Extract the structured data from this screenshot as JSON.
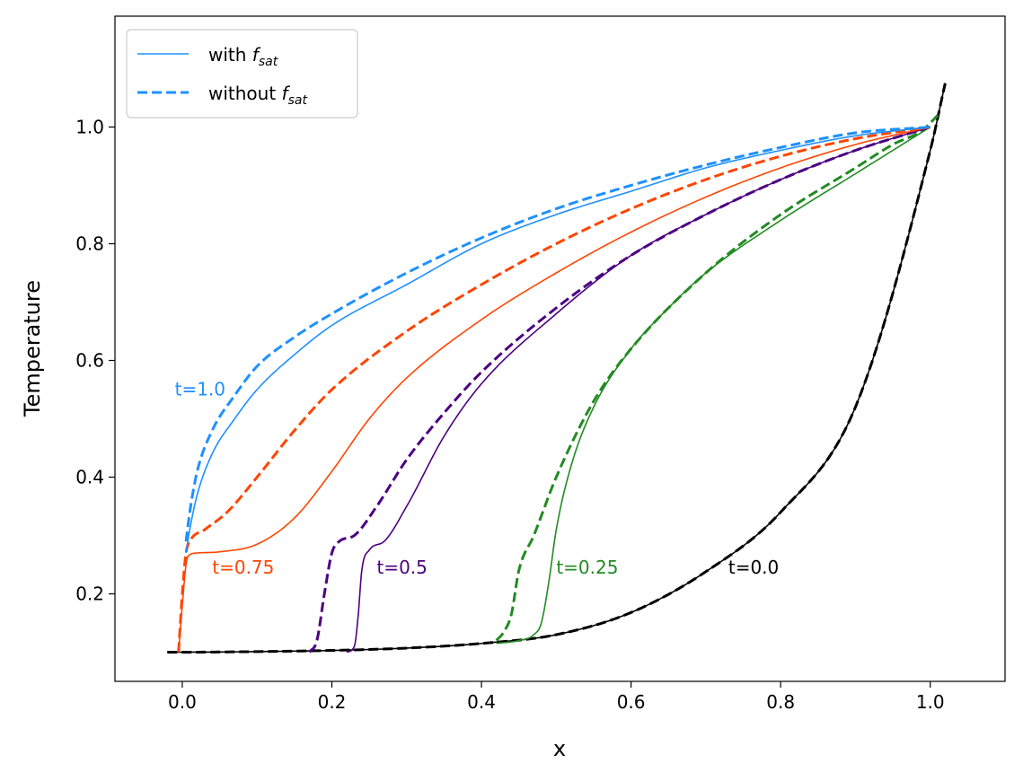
{
  "chart_data": {
    "type": "line",
    "xlabel": "x",
    "ylabel": "Temperature",
    "xlim": [
      -0.09,
      1.1
    ],
    "ylim": [
      0.05,
      1.19
    ],
    "xticks": [
      0.0,
      0.2,
      0.4,
      0.6,
      0.8,
      1.0
    ],
    "xtick_labels": [
      "0.0",
      "0.2",
      "0.4",
      "0.6",
      "0.8",
      "1.0"
    ],
    "yticks": [
      0.2,
      0.4,
      0.6,
      0.8,
      1.0
    ],
    "ytick_labels": [
      "0.2",
      "0.4",
      "0.6",
      "0.8",
      "1.0"
    ],
    "grid": false,
    "legend": {
      "placement": "top-left",
      "entries": [
        {
          "name_main": "with ",
          "name_italic": "f",
          "name_sub": "sat",
          "style": "solid",
          "color": "#1e90ff"
        },
        {
          "name_main": "without ",
          "name_italic": "f",
          "name_sub": "sat",
          "style": "dashed",
          "color": "#1e90ff"
        }
      ]
    },
    "annotations": [
      {
        "text": "t=1.0",
        "x": -0.01,
        "y": 0.54,
        "color": "#1e90ff"
      },
      {
        "text": "t=0.75",
        "x": 0.04,
        "y": 0.235,
        "color": "#ff4500"
      },
      {
        "text": "t=0.5",
        "x": 0.26,
        "y": 0.235,
        "color": "#4b0082"
      },
      {
        "text": "t=0.25",
        "x": 0.5,
        "y": 0.235,
        "color": "#228b22"
      },
      {
        "text": "t=0.0",
        "x": 0.73,
        "y": 0.235,
        "color": "#000000"
      }
    ],
    "series": [
      {
        "time": "t=0.0",
        "style": "solid",
        "color": "#000000",
        "x": [
          -0.02,
          0.0,
          0.1,
          0.2,
          0.3,
          0.4,
          0.5,
          0.6,
          0.7,
          0.8,
          0.9,
          1.0,
          1.02
        ],
        "y": [
          0.1,
          0.1,
          0.101,
          0.103,
          0.107,
          0.115,
          0.13,
          0.168,
          0.238,
          0.34,
          0.52,
          0.96,
          1.075
        ]
      },
      {
        "time": "t=0.0",
        "style": "dashed",
        "color": "#000000",
        "x": [
          -0.02,
          0.0,
          0.1,
          0.2,
          0.3,
          0.4,
          0.5,
          0.6,
          0.7,
          0.8,
          0.9,
          1.0,
          1.02
        ],
        "y": [
          0.1,
          0.1,
          0.101,
          0.103,
          0.107,
          0.115,
          0.13,
          0.168,
          0.238,
          0.34,
          0.52,
          0.96,
          1.075
        ]
      },
      {
        "time": "t=0.25",
        "style": "solid",
        "color": "#228b22",
        "x": [
          0.42,
          0.45,
          0.47,
          0.48,
          0.49,
          0.5,
          0.52,
          0.55,
          0.6,
          0.65,
          0.7,
          0.8,
          0.9,
          0.95,
          1.0
        ],
        "y": [
          0.115,
          0.12,
          0.13,
          0.15,
          0.22,
          0.31,
          0.42,
          0.52,
          0.62,
          0.69,
          0.75,
          0.84,
          0.92,
          0.96,
          1.0
        ]
      },
      {
        "time": "t=0.25",
        "style": "dashed",
        "color": "#228b22",
        "x": [
          0.42,
          0.43,
          0.44,
          0.45,
          0.47,
          0.5,
          0.55,
          0.6,
          0.7,
          0.8,
          0.9,
          0.95,
          0.99,
          1.01
        ],
        "y": [
          0.12,
          0.135,
          0.165,
          0.24,
          0.3,
          0.4,
          0.53,
          0.62,
          0.75,
          0.85,
          0.93,
          0.97,
          0.995,
          1.02
        ]
      },
      {
        "time": "t=0.5",
        "style": "solid",
        "color": "#4b0082",
        "x": [
          0.22,
          0.23,
          0.235,
          0.24,
          0.25,
          0.27,
          0.3,
          0.35,
          0.4,
          0.5,
          0.6,
          0.7,
          0.8,
          0.9,
          1.0
        ],
        "y": [
          0.1,
          0.11,
          0.16,
          0.24,
          0.275,
          0.29,
          0.35,
          0.47,
          0.56,
          0.68,
          0.78,
          0.85,
          0.91,
          0.96,
          1.0
        ]
      },
      {
        "time": "t=0.5",
        "style": "dashed",
        "color": "#4b0082",
        "x": [
          0.17,
          0.18,
          0.19,
          0.2,
          0.21,
          0.23,
          0.26,
          0.3,
          0.35,
          0.4,
          0.5,
          0.6,
          0.7,
          0.8,
          0.9,
          1.0
        ],
        "y": [
          0.1,
          0.12,
          0.2,
          0.27,
          0.29,
          0.3,
          0.35,
          0.43,
          0.51,
          0.58,
          0.69,
          0.78,
          0.85,
          0.91,
          0.96,
          1.0
        ]
      },
      {
        "time": "t=0.75",
        "style": "solid",
        "color": "#ff4500",
        "x": [
          -0.005,
          0.0,
          0.005,
          0.008,
          0.02,
          0.05,
          0.1,
          0.15,
          0.2,
          0.25,
          0.3,
          0.4,
          0.5,
          0.6,
          0.7,
          0.8,
          0.9,
          1.0
        ],
        "y": [
          0.1,
          0.18,
          0.25,
          0.265,
          0.27,
          0.272,
          0.285,
          0.33,
          0.41,
          0.5,
          0.57,
          0.67,
          0.75,
          0.82,
          0.88,
          0.93,
          0.97,
          1.0
        ]
      },
      {
        "time": "t=0.75",
        "style": "dashed",
        "color": "#ff4500",
        "x": [
          -0.005,
          0.0,
          0.005,
          0.01,
          0.03,
          0.06,
          0.1,
          0.15,
          0.2,
          0.3,
          0.4,
          0.5,
          0.6,
          0.7,
          0.8,
          0.9,
          1.0
        ],
        "y": [
          0.1,
          0.2,
          0.27,
          0.29,
          0.31,
          0.34,
          0.4,
          0.48,
          0.55,
          0.65,
          0.73,
          0.8,
          0.86,
          0.91,
          0.95,
          0.98,
          1.0
        ]
      },
      {
        "time": "t=1.0",
        "style": "solid",
        "color": "#1e90ff",
        "x": [
          0.005,
          0.01,
          0.02,
          0.04,
          0.07,
          0.1,
          0.15,
          0.2,
          0.3,
          0.4,
          0.5,
          0.6,
          0.7,
          0.8,
          0.9,
          1.0
        ],
        "y": [
          0.27,
          0.31,
          0.37,
          0.44,
          0.5,
          0.55,
          0.61,
          0.66,
          0.73,
          0.8,
          0.85,
          0.89,
          0.93,
          0.96,
          0.985,
          1.0
        ]
      },
      {
        "time": "t=1.0",
        "style": "dashed",
        "color": "#1e90ff",
        "x": [
          0.005,
          0.01,
          0.02,
          0.04,
          0.07,
          0.1,
          0.15,
          0.2,
          0.3,
          0.4,
          0.5,
          0.6,
          0.7,
          0.8,
          0.9,
          1.0
        ],
        "y": [
          0.29,
          0.34,
          0.41,
          0.48,
          0.54,
          0.59,
          0.64,
          0.68,
          0.75,
          0.81,
          0.86,
          0.9,
          0.935,
          0.965,
          0.99,
          1.0
        ]
      }
    ]
  }
}
